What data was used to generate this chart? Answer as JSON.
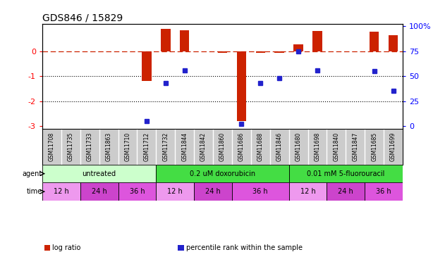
{
  "title": "GDS846 / 15829",
  "samples": [
    "GSM11708",
    "GSM11735",
    "GSM11733",
    "GSM11863",
    "GSM11710",
    "GSM11712",
    "GSM11732",
    "GSM11844",
    "GSM11842",
    "GSM11860",
    "GSM11686",
    "GSM11688",
    "GSM11846",
    "GSM11680",
    "GSM11698",
    "GSM11840",
    "GSM11847",
    "GSM11685",
    "GSM11699"
  ],
  "log_ratio": [
    0.0,
    0.0,
    0.0,
    0.0,
    0.0,
    -1.2,
    0.9,
    0.85,
    0.0,
    -0.05,
    -2.8,
    -0.07,
    -0.07,
    0.28,
    0.82,
    0.0,
    0.0,
    0.78,
    0.65
  ],
  "percentile": [
    null,
    null,
    null,
    null,
    null,
    5,
    43,
    56,
    null,
    null,
    2,
    43,
    48,
    75,
    56,
    null,
    null,
    55,
    35
  ],
  "ylim": [
    -3.1,
    1.1
  ],
  "yticks": [
    -3,
    -2,
    -1,
    0
  ],
  "y2ticks_pct": [
    0,
    25,
    50,
    75,
    100
  ],
  "y2tick_labels": [
    "0",
    "25",
    "50",
    "75",
    "100%"
  ],
  "dotted_lines": [
    -1,
    -2
  ],
  "bar_color": "#cc2200",
  "pct_color": "#2222cc",
  "pct_marker_size": 5,
  "bar_width": 0.5,
  "agents": [
    {
      "label": "untreated",
      "start": 0,
      "end": 6,
      "color": "#ccffcc"
    },
    {
      "label": "0.2 uM doxorubicin",
      "start": 6,
      "end": 13,
      "color": "#44dd44"
    },
    {
      "label": "0.01 mM 5-fluorouracil",
      "start": 13,
      "end": 19,
      "color": "#44dd44"
    }
  ],
  "times": [
    {
      "label": "12 h",
      "start": 0,
      "end": 2,
      "color": "#ee99ee"
    },
    {
      "label": "24 h",
      "start": 2,
      "end": 4,
      "color": "#cc44cc"
    },
    {
      "label": "36 h",
      "start": 4,
      "end": 6,
      "color": "#dd55dd"
    },
    {
      "label": "12 h",
      "start": 6,
      "end": 8,
      "color": "#ee99ee"
    },
    {
      "label": "24 h",
      "start": 8,
      "end": 10,
      "color": "#cc44cc"
    },
    {
      "label": "36 h",
      "start": 10,
      "end": 13,
      "color": "#dd55dd"
    },
    {
      "label": "12 h",
      "start": 13,
      "end": 15,
      "color": "#ee99ee"
    },
    {
      "label": "24 h",
      "start": 15,
      "end": 17,
      "color": "#cc44cc"
    },
    {
      "label": "36 h",
      "start": 17,
      "end": 19,
      "color": "#dd55dd"
    }
  ],
  "legend_items": [
    {
      "label": "log ratio",
      "color": "#cc2200"
    },
    {
      "label": "percentile rank within the sample",
      "color": "#2222cc"
    }
  ],
  "sample_box_color": "#cccccc",
  "sample_fontsize": 5.5,
  "agent_fontsize": 7,
  "time_fontsize": 7
}
